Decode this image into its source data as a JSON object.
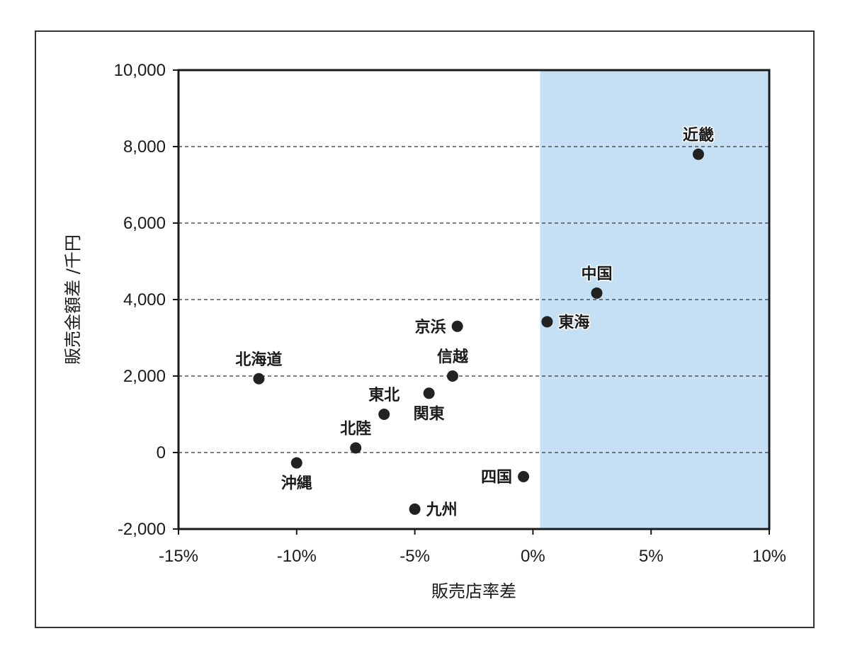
{
  "chart_data": {
    "type": "scatter",
    "xlabel": "販売店率差",
    "ylabel": "販売金額差 /千円",
    "xlim": [
      -15,
      10
    ],
    "ylim": [
      -2000,
      10000
    ],
    "x_ticks": [
      -15,
      -10,
      -5,
      0,
      5,
      10
    ],
    "x_tick_labels": [
      "-15%",
      "-10%",
      "-5%",
      "0%",
      "5%",
      "10%"
    ],
    "y_ticks": [
      -2000,
      0,
      2000,
      4000,
      6000,
      8000,
      10000
    ],
    "y_tick_labels": [
      "-2,000",
      "0",
      "2,000",
      "4,000",
      "6,000",
      "8,000",
      "10,000"
    ],
    "grid": "horizontal dashed",
    "highlight_region": {
      "x_from": 0.3,
      "x_to": 10,
      "color": "#c5e0f5"
    },
    "marker_color": "#222222",
    "points": [
      {
        "label": "近畿",
        "x": 7.0,
        "y": 7800,
        "label_pos": "above"
      },
      {
        "label": "中国",
        "x": 2.7,
        "y": 4170,
        "label_pos": "above"
      },
      {
        "label": "東海",
        "x": 0.6,
        "y": 3420,
        "label_pos": "right"
      },
      {
        "label": "京浜",
        "x": -3.2,
        "y": 3300,
        "label_pos": "left"
      },
      {
        "label": "信越",
        "x": -3.4,
        "y": 2000,
        "label_pos": "above"
      },
      {
        "label": "北海道",
        "x": -11.6,
        "y": 1930,
        "label_pos": "above"
      },
      {
        "label": "関東",
        "x": -4.4,
        "y": 1550,
        "label_pos": "below"
      },
      {
        "label": "東北",
        "x": -6.3,
        "y": 1000,
        "label_pos": "above"
      },
      {
        "label": "北陸",
        "x": -7.5,
        "y": 120,
        "label_pos": "above"
      },
      {
        "label": "沖縄",
        "x": -10.0,
        "y": -270,
        "label_pos": "below"
      },
      {
        "label": "四国",
        "x": -0.4,
        "y": -630,
        "label_pos": "left"
      },
      {
        "label": "九州",
        "x": -5.0,
        "y": -1480,
        "label_pos": "right"
      }
    ]
  }
}
